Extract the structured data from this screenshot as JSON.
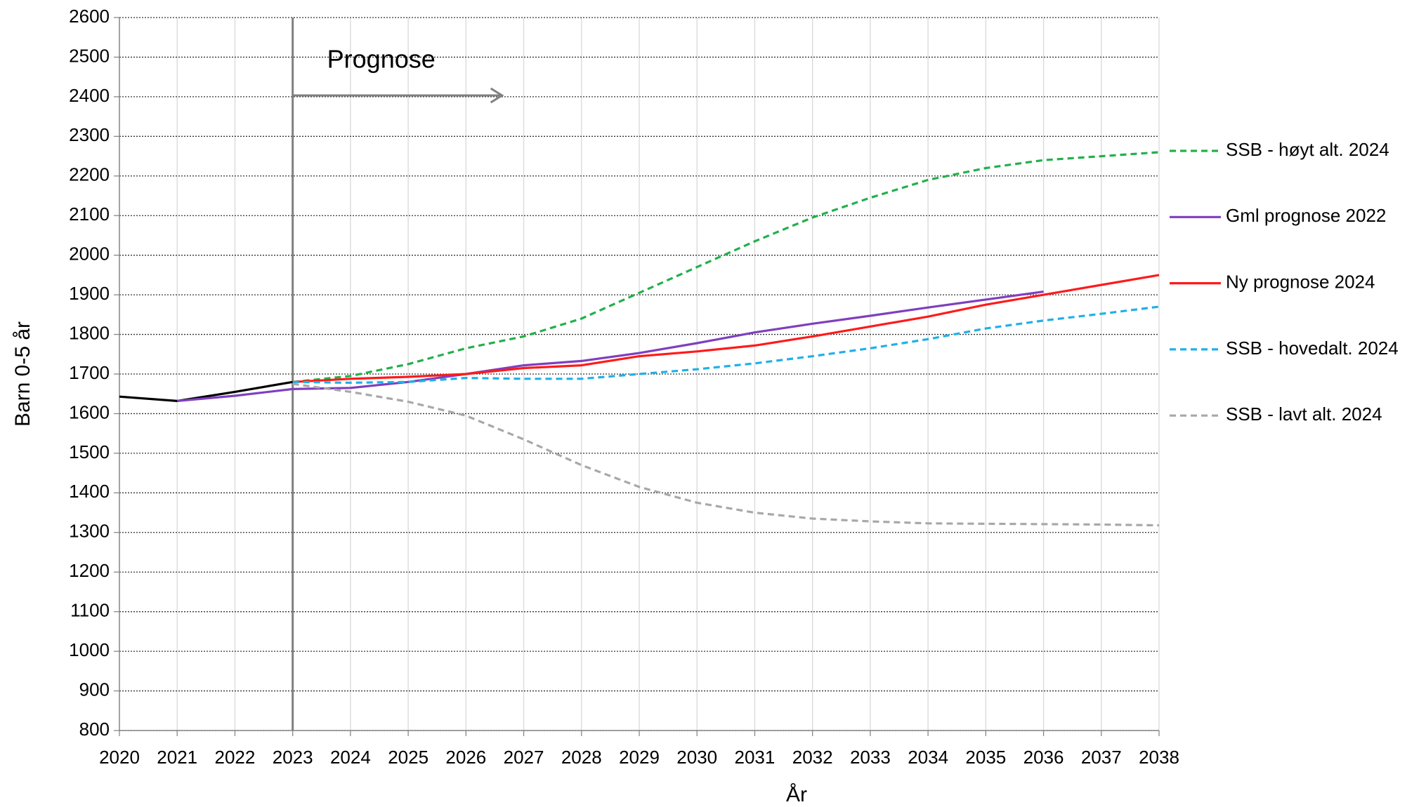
{
  "chart_data": {
    "type": "line",
    "y_label": "Barn 0-5 år",
    "x_label": "År",
    "x": [
      2020,
      2021,
      2022,
      2023,
      2024,
      2025,
      2026,
      2027,
      2028,
      2029,
      2030,
      2031,
      2032,
      2033,
      2034,
      2035,
      2036,
      2037,
      2038
    ],
    "xlim": [
      2020,
      2038
    ],
    "xticks": [
      2020,
      2021,
      2022,
      2023,
      2024,
      2025,
      2026,
      2027,
      2028,
      2029,
      2030,
      2031,
      2032,
      2033,
      2034,
      2035,
      2036,
      2037,
      2038
    ],
    "ylim": [
      800,
      2600
    ],
    "yticks": [
      800,
      900,
      1000,
      1100,
      1200,
      1300,
      1400,
      1500,
      1600,
      1700,
      1800,
      1900,
      2000,
      2100,
      2200,
      2300,
      2400,
      2500,
      2600
    ],
    "grid": true,
    "legend": "right",
    "annotations": [
      {
        "text": "Prognose",
        "x": 2023
      }
    ],
    "series": [
      {
        "color": "#000000",
        "style": "solid",
        "values": [
          1643,
          1632,
          1655,
          1680,
          null,
          null,
          null,
          null,
          null,
          null,
          null,
          null,
          null,
          null,
          null,
          null,
          null,
          null,
          null
        ]
      },
      {
        "name": "SSB - høyt alt. 2024",
        "color": "#22b04b",
        "style": "dashed",
        "values": [
          null,
          null,
          null,
          1680,
          1695,
          1725,
          1765,
          1795,
          1840,
          1905,
          1970,
          2035,
          2095,
          2145,
          2190,
          2220,
          2240,
          2250,
          2260
        ]
      },
      {
        "name": "Gml prognose 2022",
        "color": "#7f3fbf",
        "style": "solid",
        "values": [
          null,
          1632,
          1645,
          1662,
          1665,
          1680,
          1700,
          1722,
          1733,
          1753,
          1778,
          1805,
          1827,
          1847,
          1868,
          1888,
          1908,
          null,
          null
        ]
      },
      {
        "name": "Ny prognose 2024",
        "color": "#ff1a1a",
        "style": "solid",
        "values": [
          null,
          null,
          null,
          1680,
          1688,
          1693,
          1700,
          1715,
          1722,
          1745,
          1757,
          1772,
          1795,
          1820,
          1845,
          1875,
          1900,
          1925,
          1950
        ]
      },
      {
        "name": "SSB - hovedalt. 2024",
        "color": "#1fb0e8",
        "style": "dashed",
        "values": [
          null,
          null,
          null,
          1680,
          1678,
          1680,
          1690,
          1688,
          1688,
          1700,
          1712,
          1727,
          1745,
          1765,
          1788,
          1815,
          1835,
          1852,
          1870
        ]
      },
      {
        "name": "SSB - lavt alt. 2024",
        "color": "#a8a8a8",
        "style": "dashed",
        "values": [
          null,
          null,
          null,
          1675,
          1655,
          1630,
          1595,
          1535,
          1470,
          1415,
          1375,
          1350,
          1335,
          1328,
          1323,
          1322,
          1321,
          1320,
          1318
        ]
      }
    ]
  }
}
